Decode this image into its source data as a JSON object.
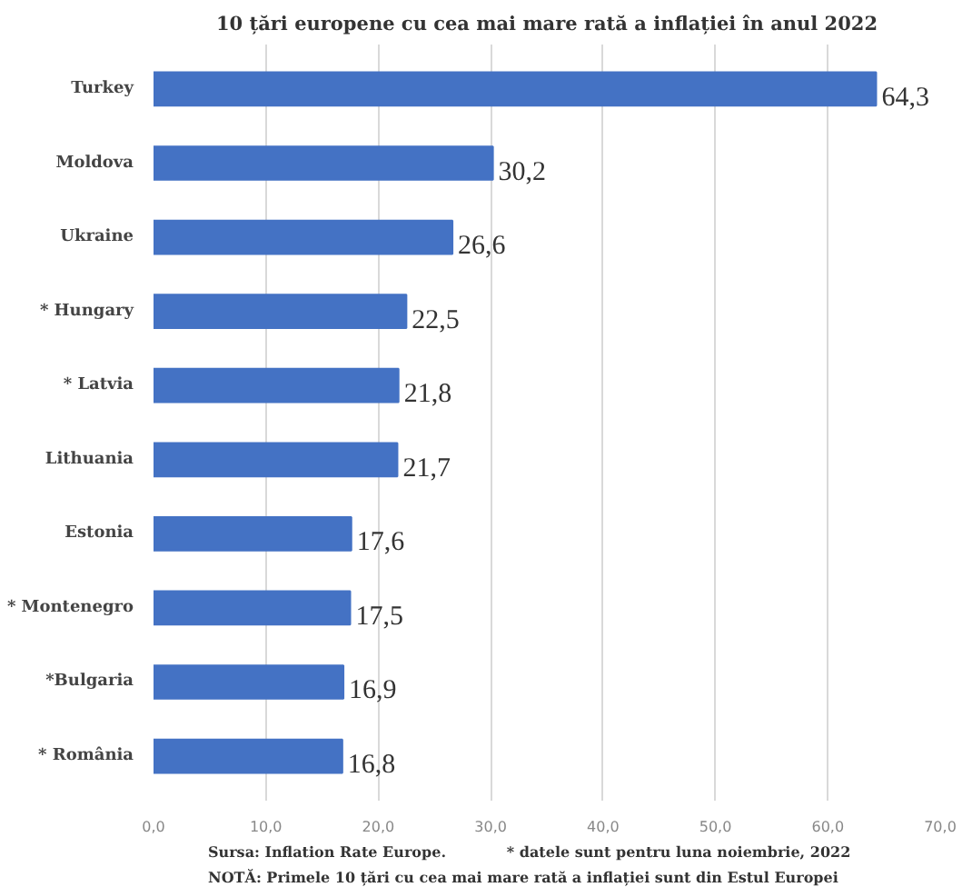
{
  "chart_data": {
    "type": "bar",
    "orientation": "horizontal",
    "title": "10 țări europene cu cea mai mare rată a inflației în anul 2022",
    "categories": [
      "Turkey",
      "Moldova",
      "Ukraine",
      "* Hungary",
      "* Latvia",
      "Lithuania",
      "Estonia",
      "* Montenegro",
      "*Bulgaria",
      "* România"
    ],
    "values": [
      64.3,
      30.2,
      26.6,
      22.5,
      21.8,
      21.7,
      17.6,
      17.5,
      16.9,
      16.8
    ],
    "value_labels": [
      "64,3",
      "30,2",
      "26,6",
      "22,5",
      "21,8",
      "21,7",
      "17,6",
      "17,5",
      "16,9",
      "16,8"
    ],
    "color": "#4472c4",
    "xlim": [
      0,
      70
    ],
    "xticks": [
      {
        "value": 0,
        "label": "0,0"
      },
      {
        "value": 10,
        "label": "10,0"
      },
      {
        "value": 20,
        "label": "20,0"
      },
      {
        "value": 30,
        "label": "30,0"
      },
      {
        "value": 40,
        "label": "40,0"
      },
      {
        "value": 50,
        "label": "50,0"
      },
      {
        "value": 60,
        "label": "60,0"
      },
      {
        "value": 70,
        "label": "70,0"
      }
    ],
    "grid": "x",
    "annotations": [
      "Sursa: Inflation Rate Europe.",
      "* datele sunt pentru luna noiembrie, 2022",
      "NOTĂ: Primele 10 țări cu cea mai mare rată a inflației sunt din Estul Europei"
    ]
  }
}
